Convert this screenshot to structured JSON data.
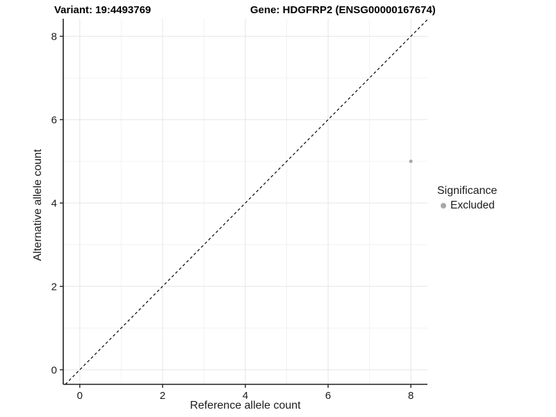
{
  "chart_data": {
    "type": "scatter",
    "title_left": "Variant: 19:4493769",
    "title_right": "Gene: HDGFRP2 (ENSG00000167674)",
    "xlabel": "Reference allele count",
    "ylabel": "Alternative allele count",
    "xlim": [
      -0.4,
      8.4
    ],
    "ylim": [
      -0.35,
      8.42
    ],
    "x_ticks": [
      0,
      2,
      4,
      6,
      8
    ],
    "y_ticks": [
      0,
      2,
      4,
      6,
      8
    ],
    "x_minor": [
      1,
      3,
      5,
      7
    ],
    "y_minor": [
      1,
      3,
      5,
      7
    ],
    "grid": true,
    "points": [
      {
        "x": 8,
        "y": 5,
        "series": "Excluded"
      }
    ],
    "identity_line": {
      "style": "dashed",
      "from": [
        -0.35,
        -0.35
      ],
      "to": [
        8.4,
        8.4
      ]
    },
    "legend": {
      "title": "Significance",
      "position": "right",
      "entries": [
        {
          "label": "Excluded",
          "color": "#a8a8a8"
        }
      ]
    },
    "colors": {
      "point": "#a8a8a8",
      "grid_major": "#e5e5e5",
      "grid_minor": "#f2f2f2",
      "axis": "#1f1f1f",
      "dashed_line": "#000000",
      "text": "#1a1a1a"
    }
  }
}
